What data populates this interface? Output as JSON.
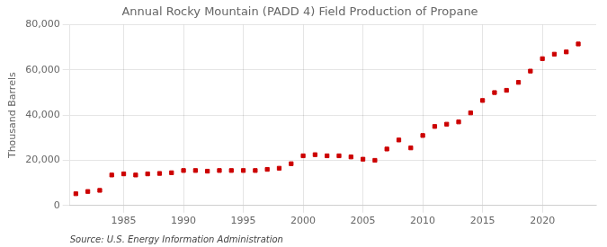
{
  "chart_data": {
    "type": "scatter",
    "title": "Annual Rocky Mountain (PADD 4) Field Production of Propane",
    "y_label": "Thousand Barrels",
    "annotations": [
      "Source: U.S. Energy Information Administration"
    ],
    "x": [
      1981,
      1982,
      1983,
      1984,
      1985,
      1986,
      1987,
      1988,
      1989,
      1990,
      1991,
      1992,
      1993,
      1994,
      1995,
      1996,
      1997,
      1998,
      1999,
      2000,
      2001,
      2002,
      2003,
      2004,
      2005,
      2006,
      2007,
      2008,
      2009,
      2010,
      2011,
      2012,
      2013,
      2014,
      2015,
      2016,
      2017,
      2018,
      2019,
      2020,
      2021,
      2022,
      2023
    ],
    "values": [
      5200,
      6200,
      6700,
      13500,
      14000,
      13500,
      14000,
      14200,
      14500,
      15500,
      15500,
      15200,
      15500,
      15500,
      15500,
      15500,
      16000,
      16500,
      18500,
      22000,
      22500,
      22000,
      22000,
      21500,
      20500,
      20000,
      25000,
      29000,
      25500,
      31000,
      35000,
      36000,
      37000,
      41000,
      46500,
      50000,
      51000,
      54500,
      59500,
      65000,
      67000,
      68000,
      71500
    ],
    "color": "#cc0000",
    "marker": "square",
    "xlim": [
      1980.5,
      2024.5
    ],
    "xticks": [
      1985,
      1990,
      1995,
      2000,
      2005,
      2010,
      2015,
      2020
    ],
    "ylim": [
      0,
      80000
    ],
    "yticks": [
      0,
      {
        "value": 20000,
        "label": "20,000"
      },
      {
        "value": 40000,
        "label": "40,000"
      },
      {
        "value": 60000,
        "label": "60,000"
      },
      {
        "value": 80000,
        "label": "80,000"
      }
    ],
    "grid": true
  }
}
